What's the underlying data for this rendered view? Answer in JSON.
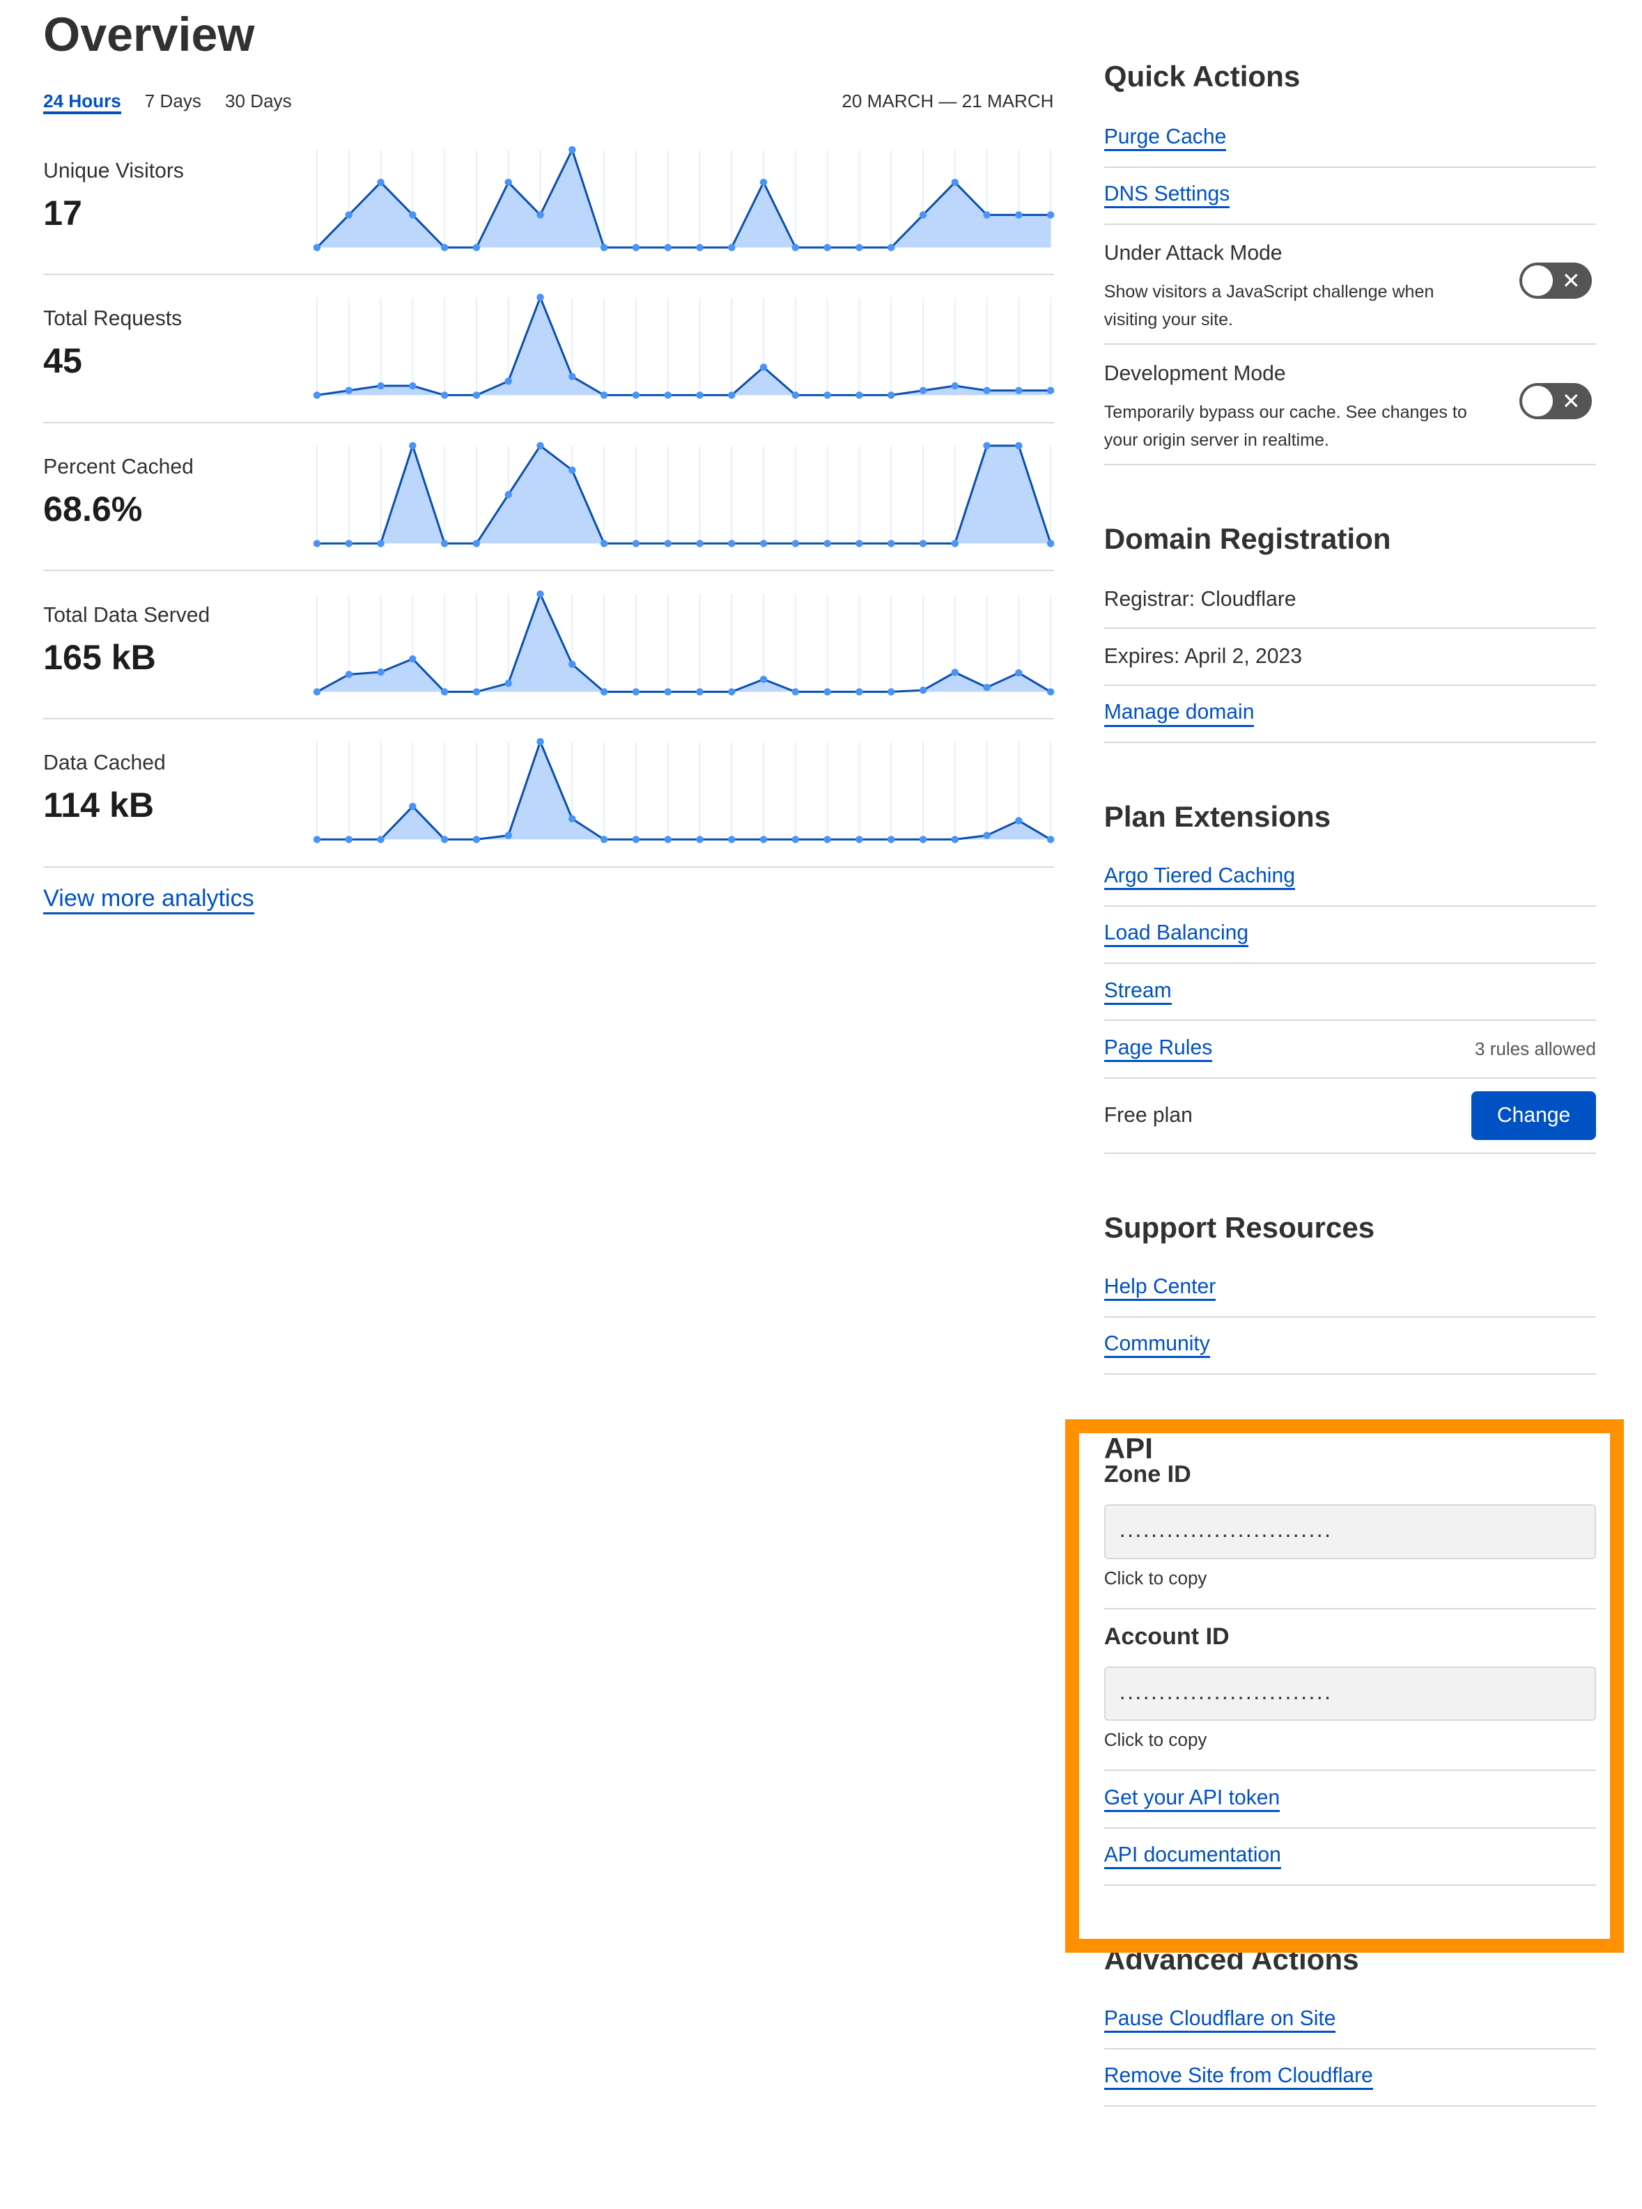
{
  "overview": {
    "title": "Overview",
    "tabs": [
      {
        "label": "24 Hours",
        "active": true
      },
      {
        "label": "7 Days",
        "active": false
      },
      {
        "label": "30 Days",
        "active": false
      }
    ],
    "date_range": "20 MARCH — 21 MARCH",
    "view_more": "View more analytics"
  },
  "colors": {
    "link": "#0051c3",
    "fill": "#bcd7fb",
    "line": "#0b4fae",
    "dot": "#4a93f7",
    "grid": "#e6f0fc",
    "highlight": "#ff9100"
  },
  "chart_data": [
    {
      "type": "area",
      "title": "Unique Visitors",
      "value": "17",
      "values": [
        0,
        1,
        2,
        1,
        0,
        0,
        2,
        1,
        3,
        0,
        0,
        0,
        0,
        0,
        2,
        0,
        0,
        0,
        0,
        1,
        2,
        1,
        1,
        1
      ]
    },
    {
      "type": "area",
      "title": "Total Requests",
      "value": "45",
      "values": [
        0,
        1,
        2,
        2,
        0,
        0,
        3,
        21,
        4,
        0,
        0,
        0,
        0,
        0,
        6,
        0,
        0,
        0,
        0,
        1,
        2,
        1,
        1,
        1
      ]
    },
    {
      "type": "area",
      "title": "Percent Cached",
      "value": "68.6%",
      "values": [
        0,
        0,
        0,
        100,
        0,
        0,
        50,
        100,
        75,
        0,
        0,
        0,
        0,
        0,
        0,
        0,
        0,
        0,
        0,
        0,
        0,
        100,
        100,
        0
      ]
    },
    {
      "type": "area",
      "title": "Total Data Served",
      "value": "165 kB",
      "values": [
        0,
        11,
        12.5,
        20.8,
        0,
        0,
        5.4,
        61.8,
        17.4,
        0,
        0,
        0,
        0,
        0,
        7.9,
        0,
        0,
        0,
        0,
        1,
        12.3,
        2.8,
        12,
        0
      ]
    },
    {
      "type": "area",
      "title": "Data Cached",
      "value": "114 kB",
      "values": [
        0,
        0,
        0,
        21.1,
        0,
        0,
        2.6,
        62.4,
        13.2,
        0,
        0,
        0,
        0,
        0,
        0,
        0,
        0,
        0,
        0,
        0,
        0,
        2.6,
        12,
        0
      ]
    }
  ],
  "quick_actions": {
    "title": "Quick Actions",
    "links": [
      "Purge Cache",
      "DNS Settings"
    ],
    "under_attack": {
      "title": "Under Attack Mode",
      "desc": "Show visitors a JavaScript challenge when visiting your site.",
      "on": false
    },
    "dev_mode": {
      "title": "Development Mode",
      "desc": "Temporarily bypass our cache. See changes to your origin server in realtime.",
      "on": false
    }
  },
  "domain": {
    "title": "Domain Registration",
    "registrar": "Registrar: Cloudflare",
    "expires": "Expires: April 2, 2023",
    "manage": "Manage domain"
  },
  "plan": {
    "title": "Plan Extensions",
    "links": [
      "Argo Tiered Caching",
      "Load Balancing",
      "Stream",
      "Page Rules"
    ],
    "page_rules_note": "3 rules allowed",
    "plan_label": "Free plan",
    "change": "Change"
  },
  "support": {
    "title": "Support Resources",
    "links": [
      "Help Center",
      "Community"
    ]
  },
  "api": {
    "title": "API",
    "zone_label": "Zone ID",
    "zone_value": "...........................",
    "zone_copy": "Click to copy",
    "account_label": "Account ID",
    "account_value": "...........................",
    "account_copy": "Click to copy",
    "token": "Get your API token",
    "docs": "API documentation"
  },
  "advanced": {
    "title": "Advanced Actions",
    "links": [
      "Pause Cloudflare on Site",
      "Remove Site from Cloudflare"
    ]
  }
}
